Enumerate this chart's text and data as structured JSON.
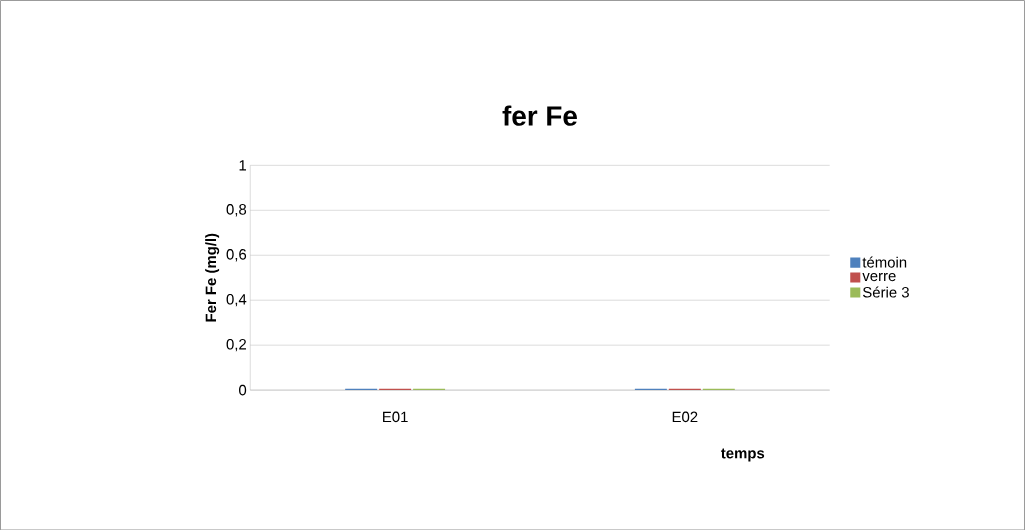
{
  "chart_data": {
    "type": "bar",
    "title": "fer Fe",
    "xlabel": "temps",
    "ylabel": "Fer Fe (mg/l)",
    "categories": [
      "E01",
      "E02"
    ],
    "series": [
      {
        "name": "témoin",
        "color": "#4f81bd",
        "values": [
          0,
          0
        ]
      },
      {
        "name": "verre",
        "color": "#c0504d",
        "values": [
          0,
          0
        ]
      },
      {
        "name": "Série 3",
        "color": "#9bbb59",
        "values": [
          0,
          0
        ]
      }
    ],
    "ylim": [
      0,
      1
    ],
    "yticks": [
      0,
      {
        "value": 0.2,
        "label": "0,2"
      },
      {
        "value": 0.4,
        "label": "0,4"
      },
      {
        "value": 0.6,
        "label": "0,6"
      },
      {
        "value": 0.8,
        "label": "0,8"
      },
      1
    ],
    "grid": "y",
    "legend": "right"
  }
}
